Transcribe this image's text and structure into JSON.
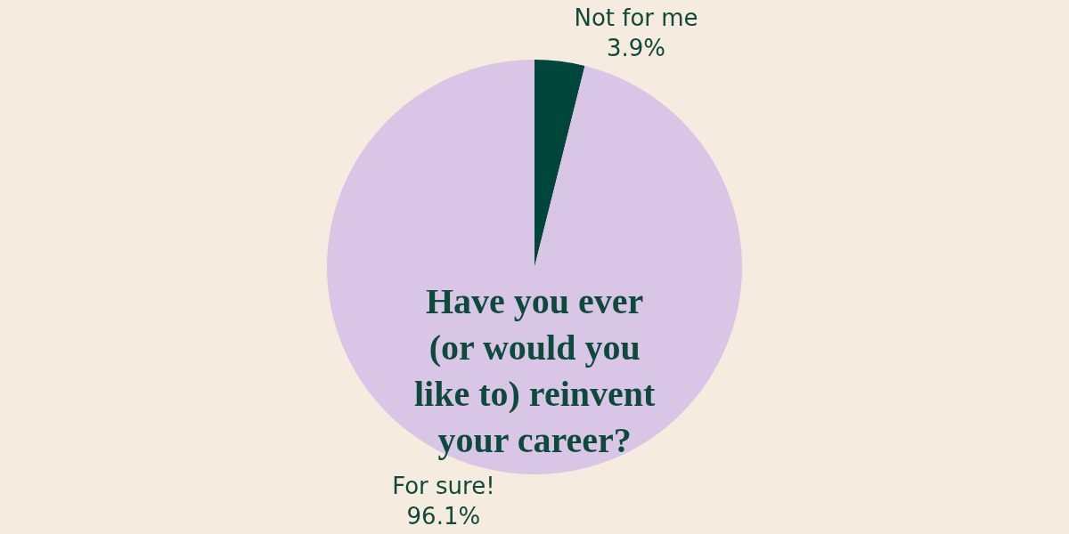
{
  "chart_data": {
    "type": "pie",
    "title": "Have you ever\n(or would you\nlike to) reinvent\nyour career?",
    "categories": [
      "Not for me",
      "For sure!"
    ],
    "values": [
      3.9,
      96.1
    ],
    "value_labels": [
      "3.9%",
      "96.1%"
    ],
    "colors": [
      "#00463a",
      "#d9c6e6"
    ],
    "legend": false
  }
}
